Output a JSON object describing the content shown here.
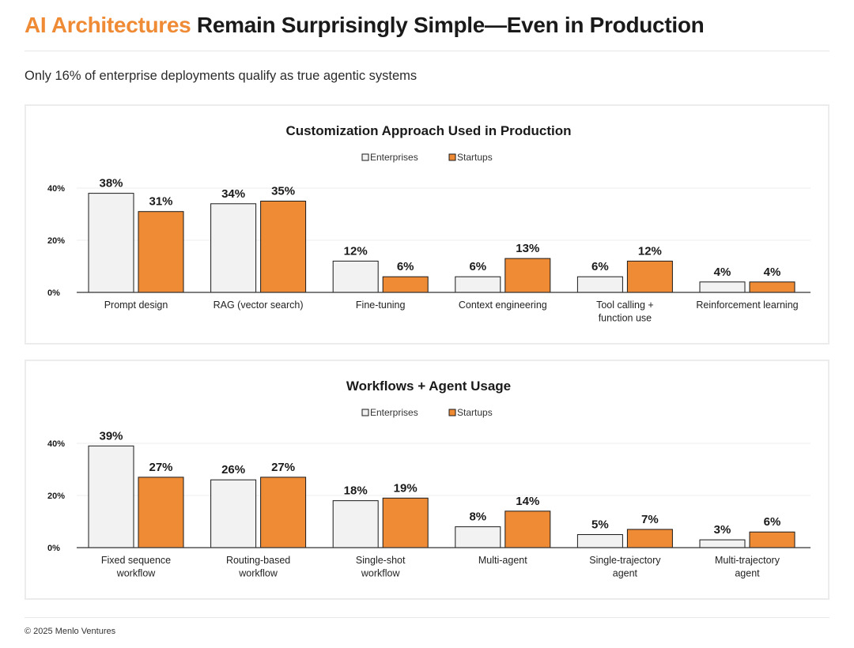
{
  "header": {
    "title_highlight": "AI Architectures",
    "title_rest": " Remain Surprisingly Simple—Even in Production",
    "subtitle": "Only 16% of enterprise deployments qualify as true agentic systems"
  },
  "colors": {
    "accent": "#ef8a35",
    "enterprises_fill": "#f2f2f2",
    "enterprises_stroke": "#1a1a1a",
    "startups_fill": "#ef8a35",
    "startups_stroke": "#1a1a1a",
    "grid": "#ededed",
    "text": "#1a1a1a"
  },
  "chart_data": [
    {
      "type": "bar",
      "title": "Customization Approach Used in Production",
      "legend_position": "top-center",
      "categories": [
        [
          "Prompt design"
        ],
        [
          "RAG (vector search)"
        ],
        [
          "Fine-tuning"
        ],
        [
          "Context engineering"
        ],
        [
          "Tool calling +",
          "function use"
        ],
        [
          "Reinforcement learning"
        ]
      ],
      "series": [
        {
          "name": "Enterprises",
          "values": [
            38,
            34,
            12,
            6,
            6,
            4
          ]
        },
        {
          "name": "Startups",
          "values": [
            31,
            35,
            6,
            13,
            12,
            4
          ]
        }
      ],
      "value_suffix": "%",
      "yticks": [
        0,
        20,
        40
      ],
      "ytick_labels": [
        "0%",
        "20%",
        "40%"
      ],
      "ylim": [
        0,
        40
      ],
      "grid": true
    },
    {
      "type": "bar",
      "title": "Workflows + Agent Usage",
      "legend_position": "top-center",
      "categories": [
        [
          "Fixed sequence",
          "workflow"
        ],
        [
          "Routing-based",
          "workflow"
        ],
        [
          "Single-shot",
          "workflow"
        ],
        [
          "Multi-agent"
        ],
        [
          "Single-trajectory",
          "agent"
        ],
        [
          "Multi-trajectory",
          "agent"
        ]
      ],
      "series": [
        {
          "name": "Enterprises",
          "values": [
            39,
            26,
            18,
            8,
            5,
            3
          ]
        },
        {
          "name": "Startups",
          "values": [
            27,
            27,
            19,
            14,
            7,
            6
          ]
        }
      ],
      "value_suffix": "%",
      "yticks": [
        0,
        20,
        40
      ],
      "ytick_labels": [
        "0%",
        "20%",
        "40%"
      ],
      "ylim": [
        0,
        40
      ],
      "grid": true
    }
  ],
  "footer": {
    "text": "© 2025 Menlo Ventures"
  }
}
